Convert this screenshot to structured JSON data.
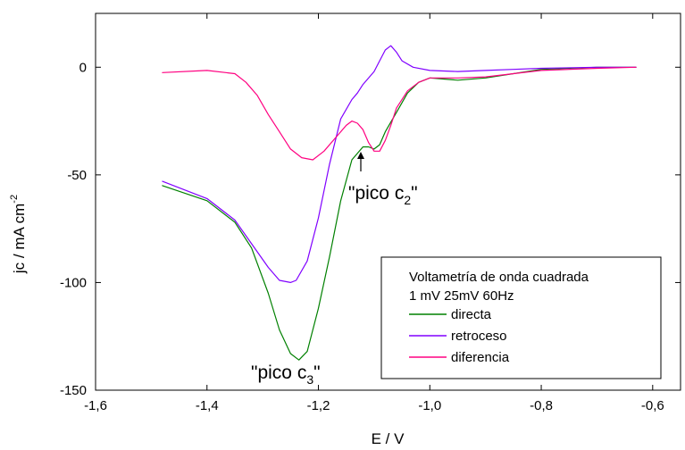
{
  "chart_data": {
    "type": "line",
    "xlabel": "E / V",
    "ylabel": "jc / mA cm",
    "ylabel_sup": "-2",
    "xlim": [
      -1.6,
      -0.55
    ],
    "ylim": [
      -150,
      25
    ],
    "xticks": [
      -1.6,
      -1.4,
      -1.2,
      -1.0,
      -0.8,
      -0.6
    ],
    "xtick_labels": [
      "-1,6",
      "-1,4",
      "-1,2",
      "-1,0",
      "-0,8",
      "-0,6"
    ],
    "yticks": [
      0,
      -50,
      -100,
      -150
    ],
    "ytick_labels": [
      "0",
      "-50",
      "-100",
      "-150"
    ],
    "legend": {
      "title_line1": "Voltametría de onda cuadrada",
      "title_line2": "1 mV  25mV  60Hz",
      "placement": "bottom-right"
    },
    "series": [
      {
        "name": "directa",
        "color": "#008000",
        "x": [
          -1.48,
          -1.4,
          -1.35,
          -1.32,
          -1.29,
          -1.27,
          -1.25,
          -1.235,
          -1.22,
          -1.2,
          -1.18,
          -1.16,
          -1.14,
          -1.12,
          -1.11,
          -1.1,
          -1.09,
          -1.08,
          -1.06,
          -1.04,
          -1.02,
          -1.0,
          -0.95,
          -0.9,
          -0.85,
          -0.8,
          -0.7,
          -0.63
        ],
        "y": [
          -55,
          -62,
          -72,
          -84,
          -105,
          -122,
          -133,
          -136,
          -132,
          -112,
          -88,
          -62,
          -43,
          -37,
          -37,
          -38,
          -36,
          -30,
          -21,
          -12,
          -7,
          -5,
          -6,
          -5,
          -3,
          -1,
          0,
          0
        ]
      },
      {
        "name": "retroceso",
        "color": "#8000ff",
        "x": [
          -1.48,
          -1.4,
          -1.35,
          -1.32,
          -1.29,
          -1.27,
          -1.25,
          -1.24,
          -1.22,
          -1.2,
          -1.18,
          -1.16,
          -1.14,
          -1.13,
          -1.12,
          -1.1,
          -1.09,
          -1.08,
          -1.07,
          -1.06,
          -1.05,
          -1.03,
          -1.0,
          -0.95,
          -0.9,
          -0.85,
          -0.8,
          -0.7,
          -0.63
        ],
        "y": [
          -53,
          -61,
          -71,
          -82,
          -93,
          -99,
          -100,
          -99,
          -90,
          -70,
          -45,
          -24,
          -15,
          -12,
          -8,
          -2,
          3,
          8,
          10,
          7,
          3,
          0,
          -1.5,
          -2,
          -1.5,
          -1,
          -0.5,
          0,
          0
        ]
      },
      {
        "name": "diferencia",
        "color": "#ff0080",
        "x": [
          -1.48,
          -1.4,
          -1.35,
          -1.33,
          -1.31,
          -1.29,
          -1.27,
          -1.25,
          -1.23,
          -1.21,
          -1.19,
          -1.17,
          -1.15,
          -1.14,
          -1.13,
          -1.12,
          -1.11,
          -1.1,
          -1.09,
          -1.08,
          -1.07,
          -1.06,
          -1.04,
          -1.02,
          -1.0,
          -0.95,
          -0.9,
          -0.85,
          -0.8,
          -0.7,
          -0.63
        ],
        "y": [
          -2.5,
          -1.5,
          -3,
          -7,
          -13,
          -22,
          -30,
          -38,
          -42,
          -43,
          -39,
          -33,
          -27,
          -25,
          -26,
          -29,
          -35,
          -39,
          -39,
          -34,
          -27,
          -19,
          -11,
          -7,
          -5,
          -5,
          -4.5,
          -3,
          -1.5,
          -0.5,
          0
        ]
      }
    ],
    "annotations": [
      {
        "text": "\"pico c",
        "sub": "2",
        "close": "\""
      },
      {
        "text": "\"pico c",
        "sub": "3",
        "close": "\""
      }
    ]
  }
}
